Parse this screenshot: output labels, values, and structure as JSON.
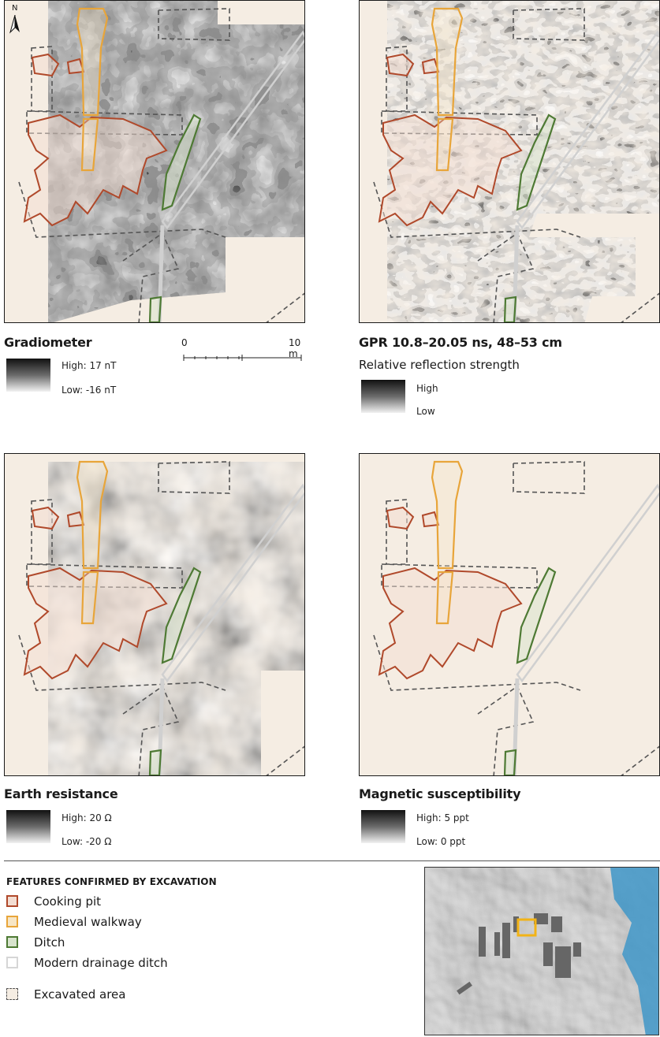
{
  "panels": {
    "gradiometer": {
      "title": "Gradiometer",
      "high": "High: 17 nT",
      "low": "Low: -16 nT"
    },
    "gpr": {
      "title": "GPR 10.8–20.05 ns, 48–53 cm",
      "subtitle": "Relative reflection strength",
      "high": "High",
      "low": "Low"
    },
    "resistance": {
      "title": "Earth resistance",
      "high": "High: 20 Ω",
      "low": "Low: -20 Ω"
    },
    "magnetic": {
      "title": "Magnetic susceptibility",
      "high": "High: 5 ppt",
      "low": "Low: 0 ppt"
    }
  },
  "north_arrow": {
    "label": "N"
  },
  "scale_bar": {
    "start_label": "0",
    "end_label": "10 m",
    "length_m": 10
  },
  "legend": {
    "title": "FEATURES CONFIRMED BY EXCAVATION",
    "items": [
      {
        "label": "Cooking pit",
        "color": "#b0492b",
        "fill": "#f3ddd2"
      },
      {
        "label": "Medieval walkway",
        "color": "#e8a53a",
        "fill": "#f7e6c6"
      },
      {
        "label": "Ditch",
        "color": "#4e7a34",
        "fill": "#d8e4cd"
      },
      {
        "label": "Modern drainage ditch",
        "color": "#d6d6d6",
        "fill": "#ffffff"
      },
      {
        "label": "Excavated area",
        "color": "#555555",
        "fill": "#f5ede3",
        "dashed": true
      }
    ]
  },
  "colors": {
    "excavated_fill": "#f5ede3",
    "cooking_pit": "#b0492b",
    "walkway": "#e8a53a",
    "ditch": "#4e7a34",
    "drainage": "#cfcfcf",
    "inset_highlight": "#f2b316"
  }
}
